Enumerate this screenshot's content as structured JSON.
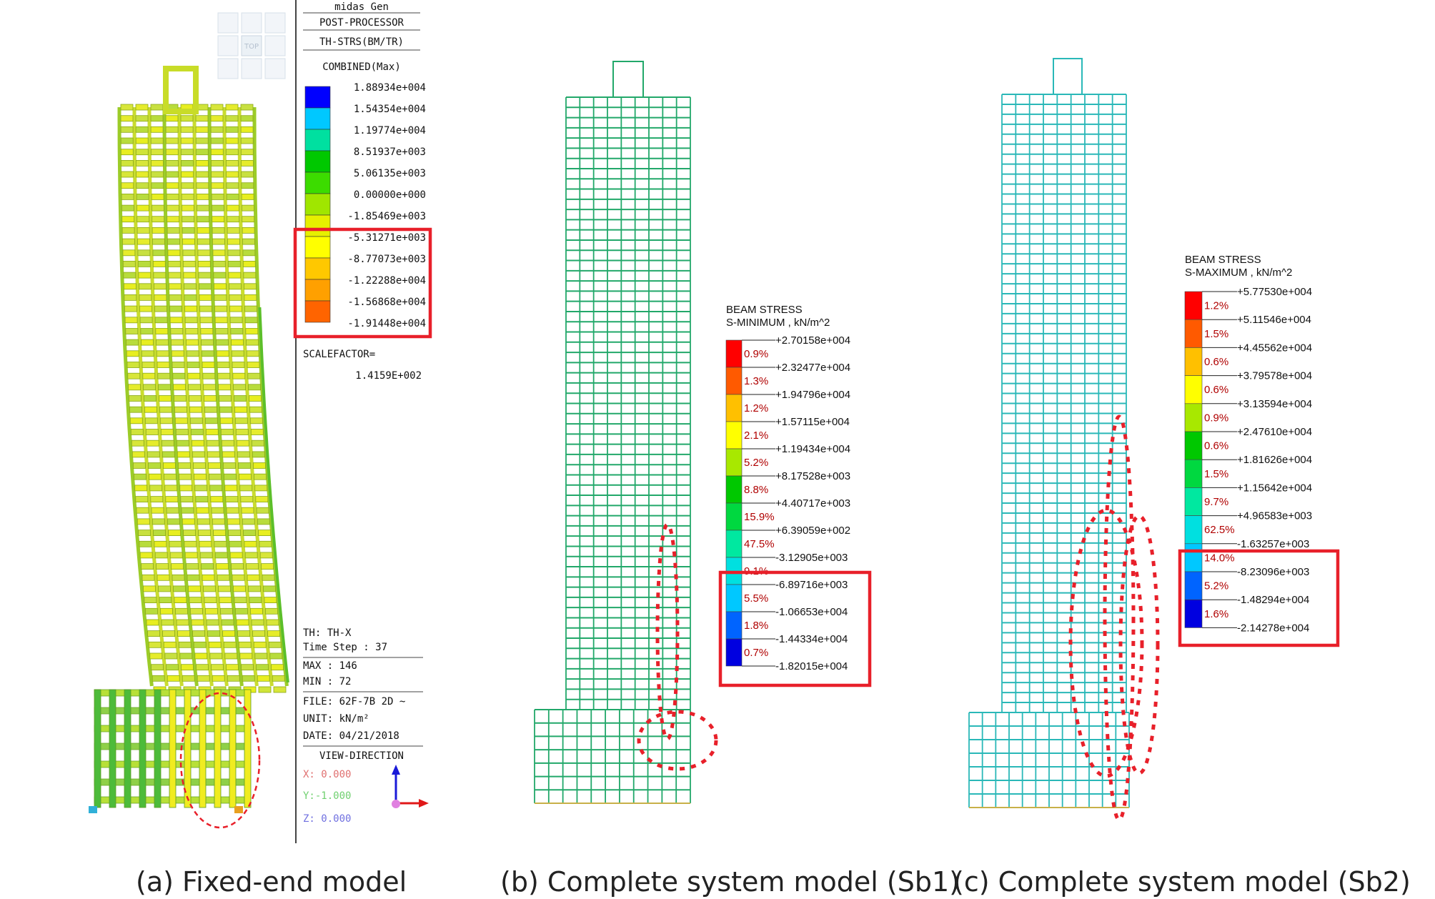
{
  "captions": {
    "a": "(a) Fixed-end model",
    "b": "(b) Complete system model (Sb1)",
    "c": "(c) Complete system model (Sb2)"
  },
  "panel_a": {
    "header": [
      "midas Gen",
      "POST-PROCESSOR",
      "TH-STRS(BM/TR)",
      "COMBINED(Max)"
    ],
    "view_cube_label": "TOP",
    "legend": [
      {
        "value": "1.88934e+004",
        "color": "#0000ff"
      },
      {
        "value": "1.54354e+004",
        "color": "#00c8ff"
      },
      {
        "value": "1.19774e+004",
        "color": "#00e0a0"
      },
      {
        "value": "8.51937e+003",
        "color": "#00c800"
      },
      {
        "value": "5.06135e+003",
        "color": "#3cdc00"
      },
      {
        "value": "0.00000e+000",
        "color": "#a0e600"
      },
      {
        "value": "-1.85469e+003",
        "color": "#e6f000"
      },
      {
        "value": "-5.31271e+003",
        "color": "#ffff00"
      },
      {
        "value": "-8.77073e+003",
        "color": "#ffc800"
      },
      {
        "value": "-1.22288e+004",
        "color": "#ffa000"
      },
      {
        "value": "-1.56868e+004",
        "color": "#ff6400"
      },
      {
        "value": "-1.91448e+004",
        "color": "#ff2800"
      }
    ],
    "scale_factor_label": "SCALEFACTOR=",
    "scale_factor_value": "1.4159E+002",
    "th": "TH: TH-X",
    "time_step": "Time Step : 37",
    "max": "MAX : 146",
    "min": "MIN : 72",
    "file": "FILE: 62F-7B 2D ~",
    "unit": "UNIT: kN/m²",
    "date": "DATE: 04/21/2018",
    "view_direction": "VIEW-DIRECTION",
    "x_dir": "X: 0.000",
    "y_dir": "Y:-1.000",
    "z_dir": "Z: 0.000"
  },
  "panel_b": {
    "title1": "BEAM STRESS",
    "title2": "S-MINIMUM , kN/m^2",
    "values": [
      "+2.70158e+004",
      "+2.32477e+004",
      "+1.94796e+004",
      "+1.57115e+004",
      "+1.19434e+004",
      "+8.17528e+003",
      "+4.40717e+003",
      "+6.39059e+002",
      "-3.12905e+003",
      "-6.89716e+003",
      "-1.06653e+004",
      "-1.44334e+004",
      "-1.82015e+004"
    ],
    "percents": [
      "0.9%",
      "1.3%",
      "1.2%",
      "2.1%",
      "5.2%",
      "8.8%",
      "15.9%",
      "47.5%",
      "9.1%",
      "5.5%",
      "1.8%",
      "0.7%"
    ],
    "colors": [
      "#ff0000",
      "#ff5a00",
      "#ffc000",
      "#ffff00",
      "#a8e800",
      "#00c800",
      "#00d840",
      "#00e8a0",
      "#00e0e0",
      "#00c8ff",
      "#0064ff",
      "#0000e0"
    ]
  },
  "panel_c": {
    "title1": "BEAM STRESS",
    "title2": "S-MAXIMUM , kN/m^2",
    "values": [
      "+5.77530e+004",
      "+5.11546e+004",
      "+4.45562e+004",
      "+3.79578e+004",
      "+3.13594e+004",
      "+2.47610e+004",
      "+1.81626e+004",
      "+1.15642e+004",
      "+4.96583e+003",
      "-1.63257e+003",
      "-8.23096e+003",
      "-1.48294e+004",
      "-2.14278e+004"
    ],
    "percents": [
      "1.2%",
      "1.5%",
      "0.6%",
      "0.6%",
      "0.9%",
      "0.6%",
      "1.5%",
      "9.7%",
      "62.5%",
      "14.0%",
      "5.2%",
      "1.6%"
    ],
    "colors": [
      "#ff0000",
      "#ff5a00",
      "#ffc000",
      "#ffff00",
      "#a8e800",
      "#00c800",
      "#00d840",
      "#00e8a0",
      "#00e0e0",
      "#00c8ff",
      "#0064ff",
      "#0000e0"
    ]
  },
  "colors": {
    "highlight_red": "#e8202a",
    "mesh_b": "#22a86a",
    "mesh_c": "#2ab8b8",
    "text_red": "#b00000"
  }
}
